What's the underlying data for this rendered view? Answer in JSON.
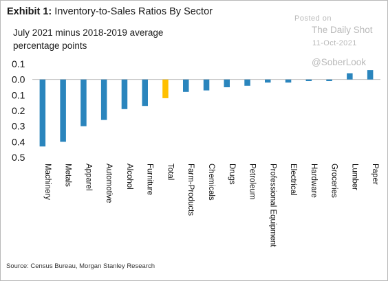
{
  "header": {
    "exhibit": "Exhibit 1:",
    "title": "Inventory-to-Sales Ratios By Sector",
    "subtitle_line1": "July 2021 minus 2018-2019 average",
    "subtitle_line2": "percentage points"
  },
  "watermark": {
    "posted": "Posted on",
    "site": "The Daily Shot",
    "date": "11-Oct-2021",
    "handle": "@SoberLook"
  },
  "footer": {
    "source": "Source: Census Bureau, Morgan Stanley Research"
  },
  "colors": {
    "bar": "#2a85bd",
    "highlight": "#ffc000"
  },
  "chart_data": {
    "type": "bar",
    "title": "Inventory-to-Sales Ratios By Sector",
    "subtitle": "July 2021 minus 2018-2019 average percentage points",
    "categories": [
      "Machinery",
      "Metals",
      "Apparel",
      "Automotive",
      "Alcohol",
      "Furniture",
      "Total",
      "Farm-Products",
      "Chemicals",
      "Drugs",
      "Petroleum",
      "Professional Equipment",
      "Electrical",
      "Hardware",
      "Groceries",
      "Lumber",
      "Paper"
    ],
    "values": [
      -0.43,
      -0.4,
      -0.3,
      -0.26,
      -0.19,
      -0.17,
      -0.12,
      -0.08,
      -0.07,
      -0.05,
      -0.04,
      -0.02,
      -0.02,
      -0.01,
      -0.01,
      0.04,
      0.06
    ],
    "highlight_category": "Total",
    "ylim": [
      -0.5,
      0.1
    ],
    "yticks": [
      0.1,
      0.0,
      -0.1,
      -0.2,
      -0.3,
      -0.4,
      -0.5
    ],
    "ytick_labels": [
      "0.1",
      "0.0",
      "0.1",
      "0.2",
      "0.3",
      "0.4",
      "0.5"
    ],
    "grid": false,
    "xlabel": "",
    "ylabel": ""
  }
}
